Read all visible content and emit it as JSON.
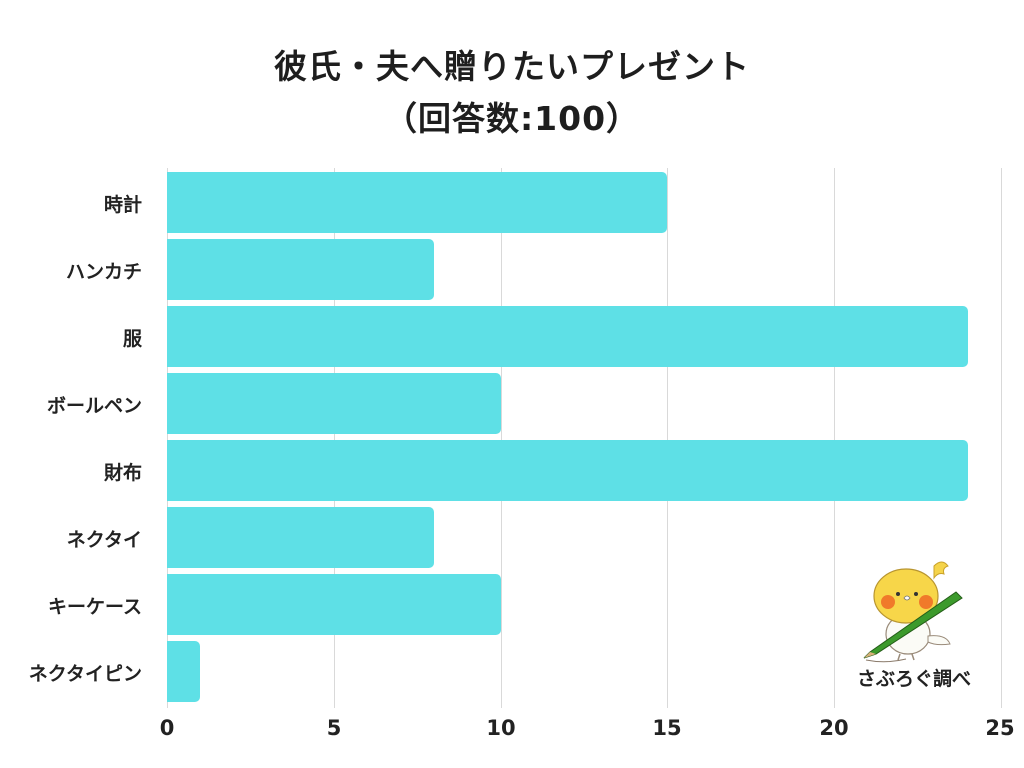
{
  "title": {
    "line1": "彼氏・夫へ贈りたいプレゼント",
    "line2": "（回答数:100）"
  },
  "credit": "さぶろぐ調べ",
  "colors": {
    "bar": "#5ee0e6",
    "grid": "#d9d9d9",
    "text": "#222222"
  },
  "chart_data": {
    "type": "bar",
    "orientation": "horizontal",
    "title": "彼氏・夫へ贈りたいプレゼント（回答数:100）",
    "categories": [
      "時計",
      "ハンカチ",
      "服",
      "ボールペン",
      "財布",
      "ネクタイ",
      "キーケース",
      "ネクタイピン"
    ],
    "values": [
      15,
      8,
      24,
      10,
      24,
      8,
      10,
      1
    ],
    "xlabel": "",
    "ylabel": "",
    "xlim": [
      0,
      25
    ],
    "xticks": [
      "0",
      "5",
      "10",
      "15",
      "20",
      "25"
    ],
    "grid": true,
    "legend": null
  }
}
